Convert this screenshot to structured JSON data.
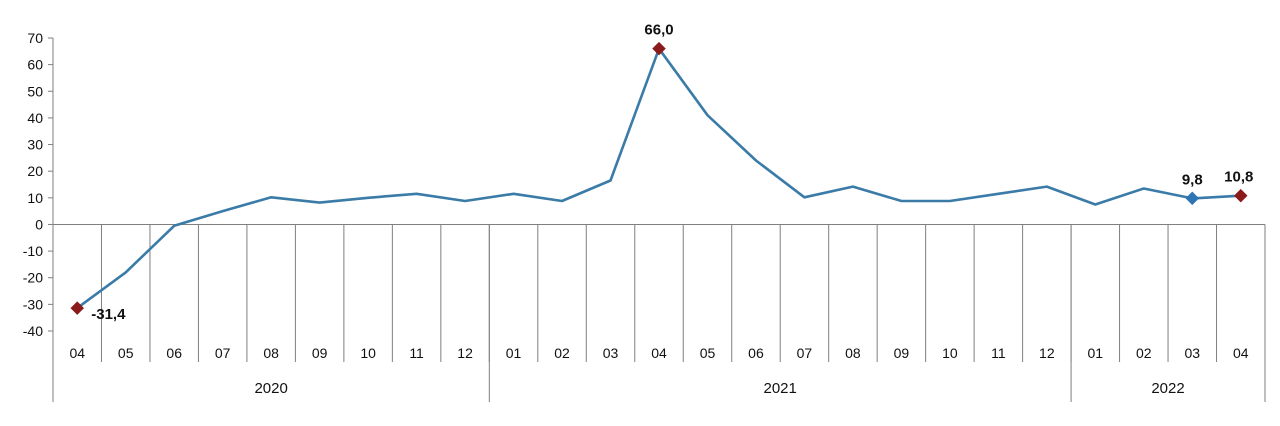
{
  "chart_data": {
    "type": "line",
    "title": "",
    "xlabel": "",
    "ylabel": "",
    "ylim": [
      -40,
      70
    ],
    "yticks": [
      -40,
      -30,
      -20,
      -10,
      0,
      10,
      20,
      30,
      40,
      50,
      60,
      70
    ],
    "grid": false,
    "legend": "none",
    "categories": [
      "04",
      "05",
      "06",
      "07",
      "08",
      "09",
      "10",
      "11",
      "12",
      "01",
      "02",
      "03",
      "04",
      "05",
      "06",
      "07",
      "08",
      "09",
      "10",
      "11",
      "12",
      "01",
      "02",
      "03",
      "04"
    ],
    "year_groups": [
      {
        "label": "2020",
        "count": 9
      },
      {
        "label": "2021",
        "count": 12
      },
      {
        "label": "2022",
        "count": 4
      }
    ],
    "series": [
      {
        "values": [
          -31.4,
          -18,
          -0.5,
          5,
          10.2,
          8.2,
          10,
          11.5,
          8.8,
          11.5,
          8.8,
          16.5,
          66.0,
          41,
          24,
          10.2,
          14.2,
          8.8,
          8.8,
          11.5,
          14.2,
          7.5,
          13.5,
          9.8,
          10.8
        ]
      }
    ],
    "annotations": [
      {
        "index": 0,
        "text": "-31,4",
        "marker_color": "#8B1A1A"
      },
      {
        "index": 12,
        "text": "66,0",
        "marker_color": "#8B1A1A"
      },
      {
        "index": 23,
        "text": "9,8",
        "marker_color": "#2E75B6"
      },
      {
        "index": 24,
        "text": "10,8",
        "marker_color": "#8B1A1A"
      }
    ],
    "colors": {
      "line": "#3A7BA8",
      "axis": "#7f7f7f"
    }
  }
}
